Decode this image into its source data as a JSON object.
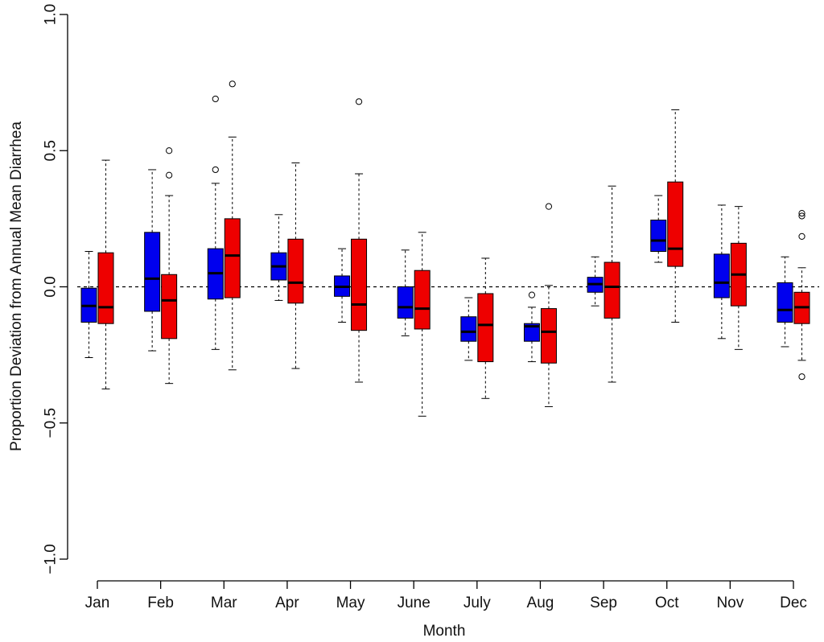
{
  "chart_data": {
    "type": "boxplot",
    "xlabel": "Month",
    "ylabel": "Proportion Deviation from Annual Mean Diarrhea",
    "ylim": [
      -1.0,
      1.0
    ],
    "yticks": [
      -1.0,
      -0.5,
      0.0,
      0.5,
      1.0
    ],
    "ytick_labels": [
      "−1.0",
      "−0.5",
      "0.0",
      "0.5",
      "1.0"
    ],
    "reference_line": 0.0,
    "categories": [
      "Jan",
      "Feb",
      "Mar",
      "Apr",
      "May",
      "June",
      "July",
      "Aug",
      "Sep",
      "Oct",
      "Nov",
      "Dec"
    ],
    "series": [
      {
        "name": "blue",
        "color": "#0000ee",
        "boxes": [
          {
            "whisker_low": -0.26,
            "q1": -0.13,
            "median": -0.07,
            "q3": -0.005,
            "whisker_high": 0.13,
            "outliers": []
          },
          {
            "whisker_low": -0.235,
            "q1": -0.09,
            "median": 0.03,
            "q3": 0.2,
            "whisker_high": 0.43,
            "outliers": []
          },
          {
            "whisker_low": -0.23,
            "q1": -0.045,
            "median": 0.05,
            "q3": 0.14,
            "whisker_high": 0.38,
            "outliers": [
              0.43,
              0.69
            ]
          },
          {
            "whisker_low": -0.05,
            "q1": 0.025,
            "median": 0.075,
            "q3": 0.125,
            "whisker_high": 0.265,
            "outliers": []
          },
          {
            "whisker_low": -0.13,
            "q1": -0.035,
            "median": 0.0,
            "q3": 0.04,
            "whisker_high": 0.14,
            "outliers": []
          },
          {
            "whisker_low": -0.18,
            "q1": -0.115,
            "median": -0.075,
            "q3": 0.0,
            "whisker_high": 0.135,
            "outliers": []
          },
          {
            "whisker_low": -0.27,
            "q1": -0.2,
            "median": -0.165,
            "q3": -0.11,
            "whisker_high": -0.04,
            "outliers": []
          },
          {
            "whisker_low": -0.275,
            "q1": -0.2,
            "median": -0.145,
            "q3": -0.135,
            "whisker_high": -0.075,
            "outliers": [
              -0.03
            ]
          },
          {
            "whisker_low": -0.07,
            "q1": -0.02,
            "median": 0.01,
            "q3": 0.035,
            "whisker_high": 0.11,
            "outliers": []
          },
          {
            "whisker_low": 0.09,
            "q1": 0.13,
            "median": 0.17,
            "q3": 0.245,
            "whisker_high": 0.335,
            "outliers": []
          },
          {
            "whisker_low": -0.19,
            "q1": -0.04,
            "median": 0.015,
            "q3": 0.12,
            "whisker_high": 0.3,
            "outliers": []
          },
          {
            "whisker_low": -0.22,
            "q1": -0.13,
            "median": -0.085,
            "q3": 0.015,
            "whisker_high": 0.11,
            "outliers": []
          }
        ]
      },
      {
        "name": "red",
        "color": "#ee0000",
        "boxes": [
          {
            "whisker_low": -0.375,
            "q1": -0.135,
            "median": -0.075,
            "q3": 0.125,
            "whisker_high": 0.465,
            "outliers": []
          },
          {
            "whisker_low": -0.355,
            "q1": -0.19,
            "median": -0.05,
            "q3": 0.045,
            "whisker_high": 0.335,
            "outliers": [
              0.41,
              0.5
            ]
          },
          {
            "whisker_low": -0.305,
            "q1": -0.04,
            "median": 0.115,
            "q3": 0.25,
            "whisker_high": 0.55,
            "outliers": [
              0.745
            ]
          },
          {
            "whisker_low": -0.3,
            "q1": -0.06,
            "median": 0.015,
            "q3": 0.175,
            "whisker_high": 0.455,
            "outliers": []
          },
          {
            "whisker_low": -0.35,
            "q1": -0.16,
            "median": -0.065,
            "q3": 0.175,
            "whisker_high": 0.415,
            "outliers": [
              0.68
            ]
          },
          {
            "whisker_low": -0.475,
            "q1": -0.155,
            "median": -0.08,
            "q3": 0.06,
            "whisker_high": 0.2,
            "outliers": []
          },
          {
            "whisker_low": -0.41,
            "q1": -0.275,
            "median": -0.14,
            "q3": -0.025,
            "whisker_high": 0.105,
            "outliers": []
          },
          {
            "whisker_low": -0.44,
            "q1": -0.28,
            "median": -0.165,
            "q3": -0.08,
            "whisker_high": 0.005,
            "outliers": [
              0.295
            ]
          },
          {
            "whisker_low": -0.35,
            "q1": -0.115,
            "median": 0.0,
            "q3": 0.09,
            "whisker_high": 0.37,
            "outliers": []
          },
          {
            "whisker_low": -0.13,
            "q1": 0.075,
            "median": 0.14,
            "q3": 0.385,
            "whisker_high": 0.65,
            "outliers": []
          },
          {
            "whisker_low": -0.23,
            "q1": -0.07,
            "median": 0.045,
            "q3": 0.16,
            "whisker_high": 0.295,
            "outliers": []
          },
          {
            "whisker_low": -0.27,
            "q1": -0.135,
            "median": -0.075,
            "q3": -0.02,
            "whisker_high": 0.07,
            "outliers": [
              0.185,
              0.26,
              0.27,
              -0.33
            ]
          }
        ]
      }
    ]
  }
}
